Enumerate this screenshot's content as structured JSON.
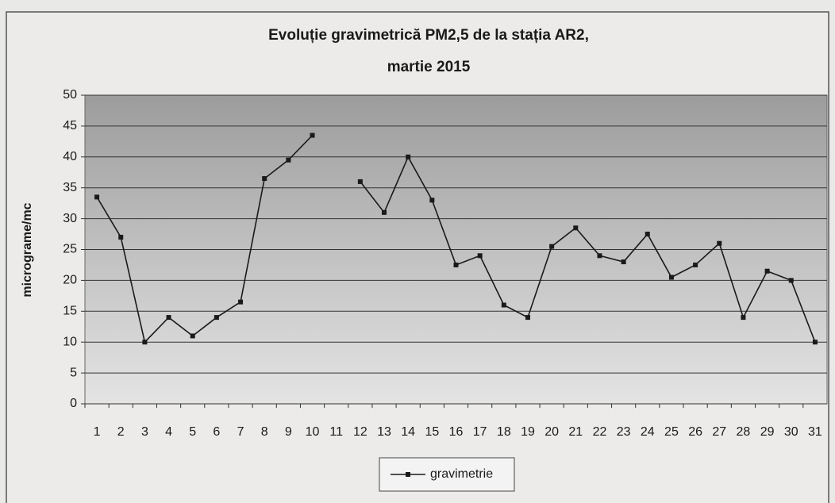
{
  "chart_data": {
    "type": "line",
    "title": [
      "Evoluție  gravimetrică PM2,5 de la stația AR2,",
      "martie 2015"
    ],
    "y_label": "micrograme/mc",
    "categories": [
      1,
      2,
      3,
      4,
      5,
      6,
      7,
      8,
      9,
      10,
      11,
      12,
      13,
      14,
      15,
      16,
      17,
      18,
      19,
      20,
      21,
      22,
      23,
      24,
      25,
      26,
      27,
      28,
      29,
      30,
      31
    ],
    "series": [
      {
        "name": "gravimetrie",
        "color": "#1a1a1a",
        "values": [
          33.5,
          27,
          10,
          14,
          11,
          14,
          16.5,
          36.5,
          39.5,
          43.5,
          null,
          36,
          31,
          40,
          33,
          22.5,
          24,
          16,
          14,
          25.5,
          28.5,
          24,
          23,
          27.5,
          20.5,
          22.5,
          26,
          14,
          21.5,
          20,
          10
        ]
      }
    ],
    "ylim": [
      0,
      50
    ],
    "yticks": [
      0,
      5,
      10,
      15,
      20,
      25,
      30,
      35,
      40,
      45,
      50
    ],
    "grid": true,
    "legend": "bottom"
  }
}
